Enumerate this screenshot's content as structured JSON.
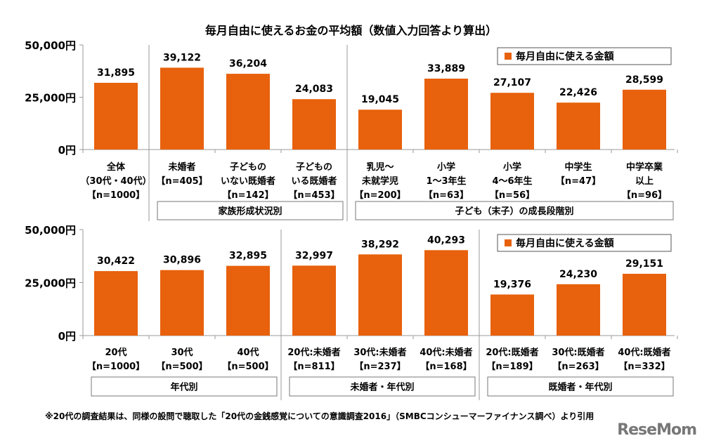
{
  "title": "毎月自由に使えるお金の平均額（数値入力回答より算出）",
  "note": "※20代の調査結果は、同様の設問で聴取した「20代の金銭感覚についての意識調査2016」（SMBCコンシューマーファイナンス調べ）より引用",
  "logo": "ReseMom",
  "colors": {
    "bar": "#E8610C",
    "axis": "#999999"
  },
  "chart_data": [
    {
      "type": "bar",
      "legend": "毎月自由に使える金額",
      "legend_position": "top-right",
      "ylim": [
        0,
        50000
      ],
      "yticks": [
        "0円",
        "25,000円",
        "50,000円"
      ],
      "ytick_values": [
        0,
        25000,
        50000
      ],
      "categories": [
        [
          "全体",
          "（30代・40代）",
          "【n=1000】"
        ],
        [
          "未婚者",
          "【n=405】"
        ],
        [
          "子どもの",
          "いない既婚者",
          "【n=142】"
        ],
        [
          "子どもの",
          "いる既婚者",
          "【n=453】"
        ],
        [
          "乳児～",
          "未就学児",
          "【n=200】"
        ],
        [
          "小学",
          "1～3年生",
          "【n=63】"
        ],
        [
          "小学",
          "4～6年生",
          "【n=56】"
        ],
        [
          "中学生",
          "【n=47】"
        ],
        [
          "中学卒業",
          "以上",
          "【n=96】"
        ]
      ],
      "values": [
        31895,
        39122,
        36204,
        24083,
        19045,
        33889,
        27107,
        22426,
        28599
      ],
      "data_labels": [
        "31,895",
        "39,122",
        "36,204",
        "24,083",
        "19,045",
        "33,889",
        "27,107",
        "22,426",
        "28,599"
      ],
      "groups": [
        {
          "label": "",
          "from": 0,
          "to": 0
        },
        {
          "label": "家族形成状況別",
          "from": 1,
          "to": 3
        },
        {
          "label": "子ども（末子）の成長段階別",
          "from": 4,
          "to": 8
        }
      ]
    },
    {
      "type": "bar",
      "legend": "毎月自由に使える金額",
      "legend_position": "top-right",
      "ylim": [
        0,
        50000
      ],
      "yticks": [
        "0円",
        "25,000円",
        "50,000円"
      ],
      "ytick_values": [
        0,
        25000,
        50000
      ],
      "categories": [
        [
          "20代",
          "【n=1000】"
        ],
        [
          "30代",
          "【n=500】"
        ],
        [
          "40代",
          "【n=500】"
        ],
        [
          "20代:未婚者",
          "【n=811】"
        ],
        [
          "30代:未婚者",
          "【n=237】"
        ],
        [
          "40代:未婚者",
          "【n=168】"
        ],
        [
          "20代:既婚者",
          "【n=189】"
        ],
        [
          "30代:既婚者",
          "【n=263】"
        ],
        [
          "40代:既婚者",
          "【n=332】"
        ]
      ],
      "values": [
        30422,
        30896,
        32895,
        32997,
        38292,
        40293,
        19376,
        24230,
        29151
      ],
      "data_labels": [
        "30,422",
        "30,896",
        "32,895",
        "32,997",
        "38,292",
        "40,293",
        "19,376",
        "24,230",
        "29,151"
      ],
      "groups": [
        {
          "label": "年代別",
          "from": 0,
          "to": 2
        },
        {
          "label": "未婚者・年代別",
          "from": 3,
          "to": 5
        },
        {
          "label": "既婚者・年代別",
          "from": 6,
          "to": 8
        }
      ]
    }
  ]
}
